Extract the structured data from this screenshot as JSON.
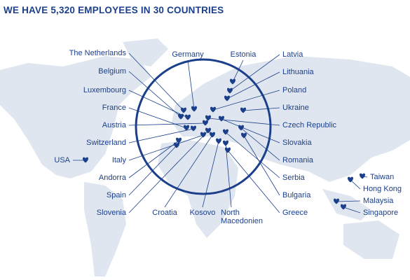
{
  "header": {
    "title": "WE HAVE 5,320 EMPLOYEES IN 30 COUNTRIES"
  },
  "countries": [
    "The Netherlands",
    "Belgium",
    "Luxembourg",
    "France",
    "Austria",
    "Switzerland",
    "Italy",
    "Andorra",
    "Spain",
    "Slovenia",
    "Croatia",
    "Kosovo",
    "North Macedonien",
    "Germany",
    "Estonia",
    "Latvia",
    "Lithuania",
    "Poland",
    "Ukraine",
    "Czech Republic",
    "Slovakia",
    "Romania",
    "Serbia",
    "Bulgaria",
    "Greece",
    "USA",
    "Taiwan",
    "Hong Kong",
    "Malaysia",
    "Singapore"
  ]
}
